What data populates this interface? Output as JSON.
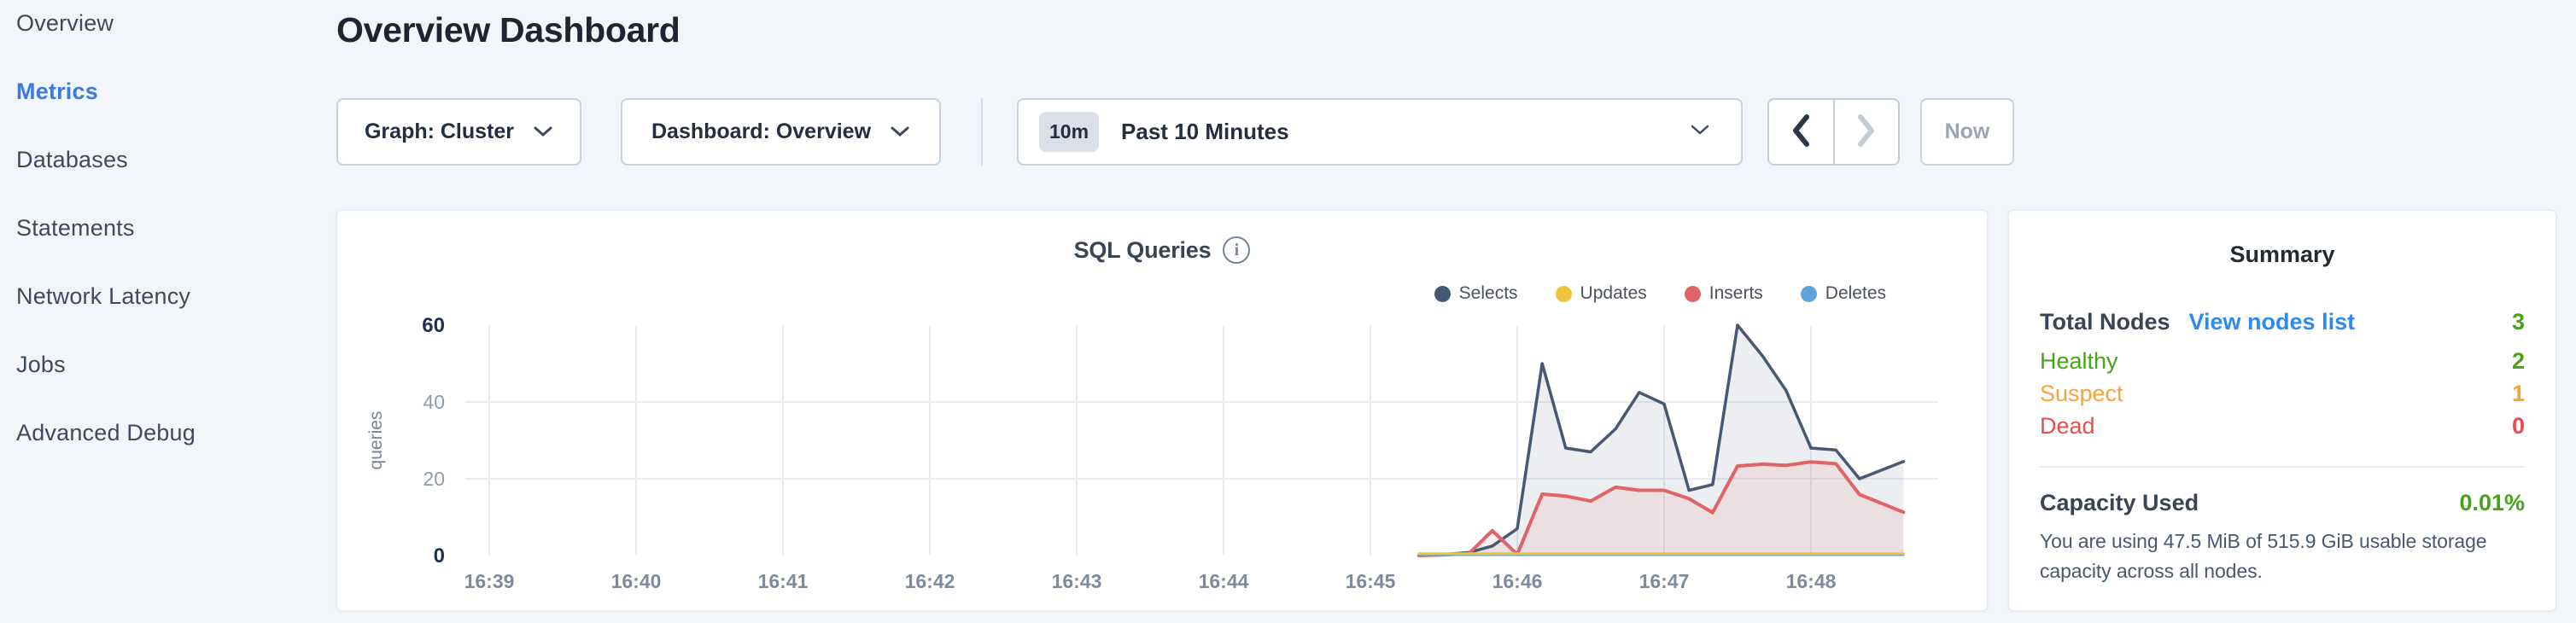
{
  "palette": {
    "page_bg": "#f2f5f9",
    "accent_blue": "#3a7ae4",
    "link_blue": "#2e8af0",
    "healthy_green": "#47a317",
    "suspect_orange": "#f5a43b",
    "dead_red": "#e84e4e"
  },
  "sidebar": {
    "items": [
      {
        "label": "Overview",
        "active": false
      },
      {
        "label": "Metrics",
        "active": true
      },
      {
        "label": "Databases",
        "active": false
      },
      {
        "label": "Statements",
        "active": false
      },
      {
        "label": "Network Latency",
        "active": false
      },
      {
        "label": "Jobs",
        "active": false
      },
      {
        "label": "Advanced Debug",
        "active": false
      }
    ]
  },
  "header": {
    "title": "Overview Dashboard"
  },
  "controls": {
    "graph_dropdown": {
      "label": "Graph: Cluster"
    },
    "dashboard_dropdown": {
      "label": "Dashboard: Overview"
    },
    "time_picker": {
      "badge": "10m",
      "label": "Past 10 Minutes"
    },
    "prev_enabled": true,
    "next_enabled": false,
    "now_label": "Now"
  },
  "chart_card": {
    "info_glyph": "i"
  },
  "chart_data": {
    "type": "area",
    "title": "SQL Queries",
    "xlabel": "",
    "ylabel": "queries",
    "ylim": [
      0,
      60
    ],
    "yticks": [
      0,
      20,
      40,
      60
    ],
    "strong_yticks": [
      0,
      60
    ],
    "xtick_labels": [
      "16:39",
      "16:40",
      "16:41",
      "16:42",
      "16:43",
      "16:44",
      "16:45",
      "16:46",
      "16:47",
      "16:48"
    ],
    "grid": true,
    "legend_position": "top-right",
    "x_minutes": [
      45.33,
      45.5,
      45.67,
      45.83,
      46.0,
      46.17,
      46.33,
      46.5,
      46.67,
      46.83,
      47.0,
      47.17,
      47.33,
      47.5,
      47.67,
      47.83,
      48.0,
      48.17,
      48.33,
      48.63
    ],
    "series": [
      {
        "name": "Selects",
        "color": "#475872",
        "fill": "rgba(71,88,114,0.10)",
        "width": 3.5,
        "values": [
          0,
          0.3,
          0.8,
          2.5,
          7,
          50,
          28,
          27,
          33,
          42.5,
          39.5,
          17,
          18.5,
          60,
          52,
          43,
          28,
          27.5,
          20,
          24.5
        ]
      },
      {
        "name": "Updates",
        "color": "#eec33d",
        "fill": null,
        "width": 3,
        "values": [
          0.5,
          0.5,
          0.5,
          0.5,
          0.5,
          0.5,
          0.5,
          0.5,
          0.5,
          0.5,
          0.5,
          0.5,
          0.5,
          0.5,
          0.5,
          0.5,
          0.5,
          0.5,
          0.5,
          0.5
        ]
      },
      {
        "name": "Inserts",
        "color": "#e06365",
        "fill": "rgba(224,99,101,0.10)",
        "width": 4,
        "values": [
          0,
          0.2,
          0.5,
          6.5,
          0.3,
          16,
          15.5,
          14.2,
          17.8,
          17,
          17,
          14.8,
          11.2,
          23.3,
          23.8,
          23.5,
          24.4,
          23.9,
          15.9,
          11.3
        ]
      },
      {
        "name": "Deletes",
        "color": "#5ea4da",
        "fill": null,
        "width": 2.5,
        "values": [
          0.15,
          0.15,
          0.15,
          0.15,
          0.15,
          0.15,
          0.15,
          0.15,
          0.15,
          0.15,
          0.15,
          0.15,
          0.15,
          0.15,
          0.15,
          0.15,
          0.15,
          0.15,
          0.15,
          0.15
        ]
      }
    ]
  },
  "summary": {
    "title": "Summary",
    "total": {
      "label": "Total Nodes",
      "link": "View nodes list",
      "value": "3"
    },
    "nodes": [
      {
        "label": "Healthy",
        "value": "2",
        "color_class": "c-green"
      },
      {
        "label": "Suspect",
        "value": "1",
        "color_class": "c-orange"
      },
      {
        "label": "Dead",
        "value": "0",
        "color_class": "c-red"
      }
    ],
    "capacity": {
      "label": "Capacity Used",
      "value": "0.01%",
      "description": "You are using 47.5 MiB of 515.9 GiB usable storage capacity across all nodes."
    }
  }
}
